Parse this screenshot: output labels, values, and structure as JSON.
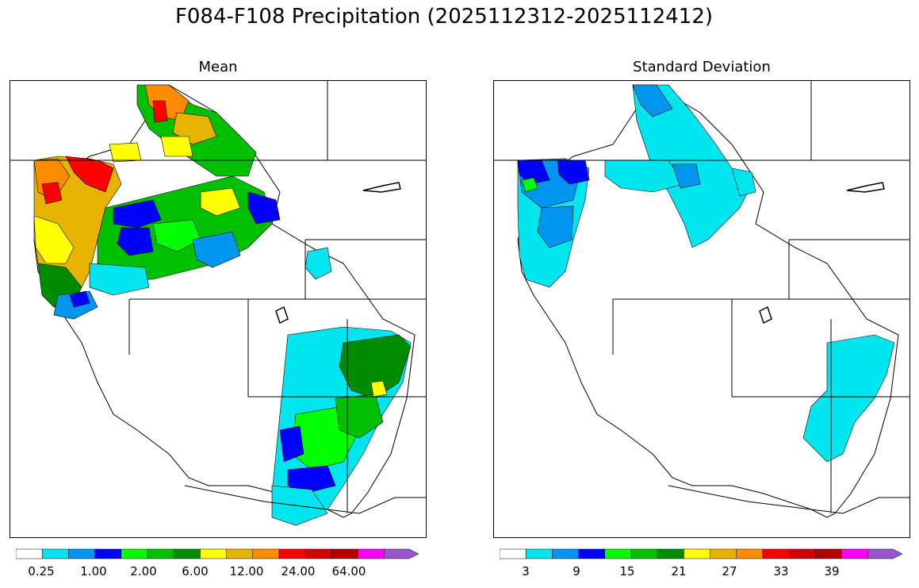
{
  "figure": {
    "title": "F084-F108 Precipitation (2025112312-2025112412)"
  },
  "panels": [
    {
      "title": "Mean",
      "colorbar": {
        "colors": [
          "#ffffff",
          "#00e5ee",
          "#0096f0",
          "#0000ff",
          "#00ff00",
          "#00c000",
          "#008c00",
          "#ffff00",
          "#e6b400",
          "#ff8c00",
          "#ff0000",
          "#d20000",
          "#b40000",
          "#ff00ff",
          "#9955cc"
        ],
        "tick_labels": [
          "0.25",
          "1.00",
          "2.00",
          "6.00",
          "12.00",
          "24.00",
          "64.00"
        ],
        "extend": "max"
      }
    },
    {
      "title": "Standard Deviation",
      "colorbar": {
        "colors": [
          "#ffffff",
          "#00e5ee",
          "#0096f0",
          "#0000ff",
          "#00ff00",
          "#00c000",
          "#008c00",
          "#ffff00",
          "#e6b400",
          "#ff8c00",
          "#ff0000",
          "#d20000",
          "#b40000",
          "#ff00ff",
          "#9955cc"
        ],
        "tick_labels": [
          "3",
          "9",
          "15",
          "21",
          "27",
          "33",
          "39"
        ],
        "extend": "max"
      }
    }
  ]
}
